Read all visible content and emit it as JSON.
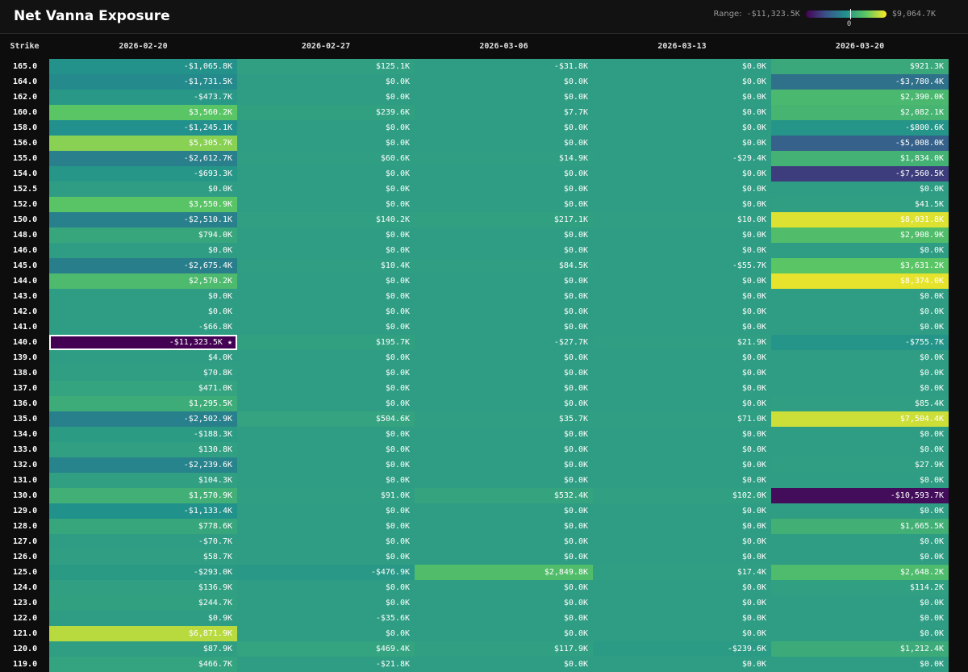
{
  "title": "Net Vanna Exposure",
  "legend": {
    "label": "Range:",
    "min": "-$11,323.5K",
    "max": "$9,064.7K",
    "zero": "0"
  },
  "columns": {
    "strike": "Strike",
    "dates": [
      "2026-02-20",
      "2026-02-27",
      "2026-03-06",
      "2026-03-13",
      "2026-03-20"
    ]
  },
  "rows": [
    {
      "strike": "165.0",
      "cells": [
        "-$1,065.8K",
        "$125.1K",
        "-$31.8K",
        "$0.0K",
        "$921.3K"
      ]
    },
    {
      "strike": "164.0",
      "cells": [
        "-$1,731.5K",
        "$0.0K",
        "$0.0K",
        "$0.0K",
        "-$3,780.4K"
      ]
    },
    {
      "strike": "162.0",
      "cells": [
        "-$473.7K",
        "$0.0K",
        "$0.0K",
        "$0.0K",
        "$2,390.0K"
      ]
    },
    {
      "strike": "160.0",
      "cells": [
        "$3,560.2K",
        "$239.6K",
        "$7.7K",
        "$0.0K",
        "$2,082.1K"
      ]
    },
    {
      "strike": "158.0",
      "cells": [
        "-$1,245.1K",
        "$0.0K",
        "$0.0K",
        "$0.0K",
        "-$800.6K"
      ]
    },
    {
      "strike": "156.0",
      "cells": [
        "$5,305.7K",
        "$0.0K",
        "$0.0K",
        "$0.0K",
        "-$5,008.0K"
      ]
    },
    {
      "strike": "155.0",
      "cells": [
        "-$2,612.7K",
        "$60.6K",
        "$14.9K",
        "-$29.4K",
        "$1,834.0K"
      ]
    },
    {
      "strike": "154.0",
      "cells": [
        "-$693.3K",
        "$0.0K",
        "$0.0K",
        "$0.0K",
        "-$7,560.5K"
      ]
    },
    {
      "strike": "152.5",
      "cells": [
        "$0.0K",
        "$0.0K",
        "$0.0K",
        "$0.0K",
        "$0.0K"
      ]
    },
    {
      "strike": "152.0",
      "cells": [
        "$3,550.9K",
        "$0.0K",
        "$0.0K",
        "$0.0K",
        "$41.5K"
      ]
    },
    {
      "strike": "150.0",
      "cells": [
        "-$2,510.1K",
        "$140.2K",
        "$217.1K",
        "$10.0K",
        "$8,031.8K"
      ]
    },
    {
      "strike": "148.0",
      "cells": [
        "$794.0K",
        "$0.0K",
        "$0.0K",
        "$0.0K",
        "$2,908.9K"
      ]
    },
    {
      "strike": "146.0",
      "cells": [
        "$0.0K",
        "$0.0K",
        "$0.0K",
        "$0.0K",
        "$0.0K"
      ]
    },
    {
      "strike": "145.0",
      "cells": [
        "-$2,675.4K",
        "$10.4K",
        "$84.5K",
        "-$55.7K",
        "$3,631.2K"
      ]
    },
    {
      "strike": "144.0",
      "cells": [
        "$2,570.2K",
        "$0.0K",
        "$0.0K",
        "$0.0K",
        "$8,374.0K"
      ]
    },
    {
      "strike": "143.0",
      "cells": [
        "$0.0K",
        "$0.0K",
        "$0.0K",
        "$0.0K",
        "$0.0K"
      ]
    },
    {
      "strike": "142.0",
      "cells": [
        "$0.0K",
        "$0.0K",
        "$0.0K",
        "$0.0K",
        "$0.0K"
      ]
    },
    {
      "strike": "141.0",
      "cells": [
        "-$66.8K",
        "$0.0K",
        "$0.0K",
        "$0.0K",
        "$0.0K"
      ]
    },
    {
      "strike": "140.0",
      "cells": [
        "-$11,323.5K ★",
        "$195.7K",
        "-$27.7K",
        "$21.9K",
        "-$755.7K"
      ]
    },
    {
      "strike": "139.0",
      "cells": [
        "$4.0K",
        "$0.0K",
        "$0.0K",
        "$0.0K",
        "$0.0K"
      ]
    },
    {
      "strike": "138.0",
      "cells": [
        "$70.8K",
        "$0.0K",
        "$0.0K",
        "$0.0K",
        "$0.0K"
      ]
    },
    {
      "strike": "137.0",
      "cells": [
        "$471.0K",
        "$0.0K",
        "$0.0K",
        "$0.0K",
        "$0.0K"
      ]
    },
    {
      "strike": "136.0",
      "cells": [
        "$1,295.5K",
        "$0.0K",
        "$0.0K",
        "$0.0K",
        "$85.4K"
      ]
    },
    {
      "strike": "135.0",
      "cells": [
        "-$2,502.9K",
        "$504.6K",
        "$35.7K",
        "$71.0K",
        "$7,504.4K"
      ]
    },
    {
      "strike": "134.0",
      "cells": [
        "-$188.3K",
        "$0.0K",
        "$0.0K",
        "$0.0K",
        "$0.0K"
      ]
    },
    {
      "strike": "133.0",
      "cells": [
        "$130.8K",
        "$0.0K",
        "$0.0K",
        "$0.0K",
        "$0.0K"
      ]
    },
    {
      "strike": "132.0",
      "cells": [
        "-$2,239.6K",
        "$0.0K",
        "$0.0K",
        "$0.0K",
        "$27.9K"
      ]
    },
    {
      "strike": "131.0",
      "cells": [
        "$104.3K",
        "$0.0K",
        "$0.0K",
        "$0.0K",
        "$0.0K"
      ]
    },
    {
      "strike": "130.0",
      "cells": [
        "$1,570.9K",
        "$91.0K",
        "$532.4K",
        "$102.0K",
        "-$10,593.7K"
      ]
    },
    {
      "strike": "129.0",
      "cells": [
        "-$1,133.4K",
        "$0.0K",
        "$0.0K",
        "$0.0K",
        "$0.0K"
      ]
    },
    {
      "strike": "128.0",
      "cells": [
        "$778.6K",
        "$0.0K",
        "$0.0K",
        "$0.0K",
        "$1,665.5K"
      ]
    },
    {
      "strike": "127.0",
      "cells": [
        "-$70.7K",
        "$0.0K",
        "$0.0K",
        "$0.0K",
        "$0.0K"
      ]
    },
    {
      "strike": "126.0",
      "cells": [
        "$58.7K",
        "$0.0K",
        "$0.0K",
        "$0.0K",
        "$0.0K"
      ]
    },
    {
      "strike": "125.0",
      "cells": [
        "-$293.0K",
        "-$476.9K",
        "$2,849.8K",
        "$17.4K",
        "$2,648.2K"
      ]
    },
    {
      "strike": "124.0",
      "cells": [
        "$136.9K",
        "$0.0K",
        "$0.0K",
        "$0.0K",
        "$114.2K"
      ]
    },
    {
      "strike": "123.0",
      "cells": [
        "$244.7K",
        "$0.0K",
        "$0.0K",
        "$0.0K",
        "$0.0K"
      ]
    },
    {
      "strike": "122.0",
      "cells": [
        "$0.9K",
        "-$35.6K",
        "$0.0K",
        "$0.0K",
        "$0.0K"
      ]
    },
    {
      "strike": "121.0",
      "cells": [
        "$6,871.9K",
        "$0.0K",
        "$0.0K",
        "$0.0K",
        "$0.0K"
      ]
    },
    {
      "strike": "120.0",
      "cells": [
        "$87.9K",
        "$469.4K",
        "$117.9K",
        "-$239.6K",
        "$1,212.4K"
      ]
    },
    {
      "strike": "119.0",
      "cells": [
        "$466.7K",
        "-$21.8K",
        "$0.0K",
        "$0.0K",
        "$0.0K"
      ]
    }
  ],
  "scale": {
    "min": -11323.5,
    "max": 9064.7
  },
  "colors": {
    "stops": [
      "#440154",
      "#3b528b",
      "#21918c",
      "#5ec962",
      "#fde725"
    ]
  }
}
